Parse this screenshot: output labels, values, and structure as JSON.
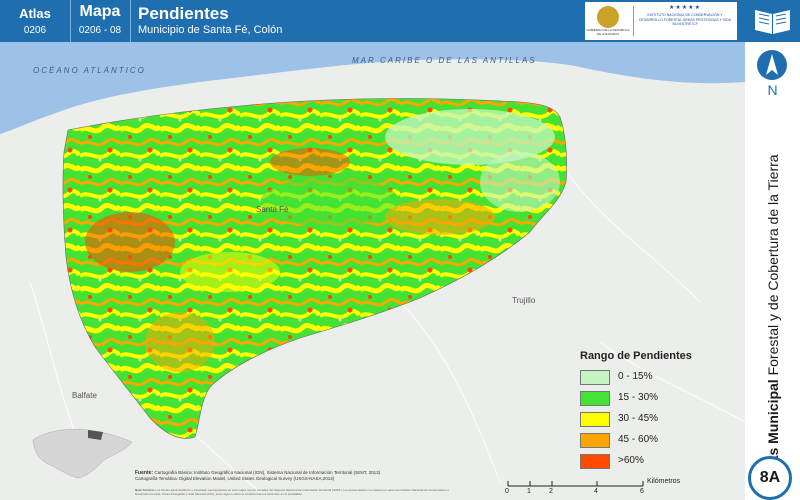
{
  "header": {
    "atlas_label": "Atlas",
    "atlas_code": "0206",
    "map_label": "Mapa",
    "map_code": "0206 - 08",
    "title": "Pendientes",
    "subtitle": "Municipio de Santa Fé, Colón",
    "logo_stars": "★★★★★",
    "logo_left_text": "GOBIERNO DE LA REPÚBLICA DE HONDURAS",
    "logo_right_text": "INSTITUTO NACIONAL DE CONSERVACIÓN Y DESARROLLO FORESTAL ÁREAS PROTEGIDAS Y VIDA SILVESTRE ICF"
  },
  "sidebar": {
    "north_letter": "N",
    "vertical_title_bold": "Atlas Municipal",
    "vertical_title_rest": "Forestal y de Cobertura de la Tierra",
    "badge": "8A"
  },
  "map": {
    "sea_labels": {
      "oceano": "OCÉANO ATLÁNTICO",
      "mar_caribe": "MAR CARIBE O DE LAS ANTILLAS"
    },
    "town_labels": {
      "santa_fe": "Santa Fé",
      "trujillo": "Trujillo",
      "balfate": "Balfate"
    },
    "colors": {
      "sea": "#9ec1e8",
      "land": "#eceeeb",
      "slope_0_15": "#c6f5c2",
      "slope_15_30": "#44e233",
      "slope_30_45": "#ffff00",
      "slope_45_60": "#ffa500",
      "slope_60": "#ff4a00"
    }
  },
  "legend": {
    "title": "Rango de Pendientes",
    "items": [
      {
        "label": "0 - 15%",
        "color": "#c6f5c2"
      },
      {
        "label": "15 - 30%",
        "color": "#44e233"
      },
      {
        "label": "30 - 45%",
        "color": "#ffff00"
      },
      {
        "label": "45 - 60%",
        "color": "#ffa500"
      },
      {
        "label": ">60%",
        "color": "#ff4a00"
      }
    ]
  },
  "sources": {
    "label": "Fuente:",
    "line1": "Cartografía Básica: Instituto Geográfico Nacional (IGN), Sistema Nacional de Información Territorial (SINIT, 2013)",
    "line2": "Cartografía Temática: Digital Elevation Model, United States Geological Survey (USGS-NASA,2014)",
    "notes_label": "Nota Técnica:",
    "notes": "Los límites administrativos y forestales representados en este mapa, fueron tomados del Sistema Nacional de Información Territorial (SINIT). La representación no implica por parte del Instituto Nacional de Conservación y Desarrollo Forestal, Áreas Protegidas y Vida Silvestre (ICF), juicio alguno sobre la condición de los territorios en la actualidad"
  },
  "scale": {
    "units": "Kilómetros",
    "ticks": [
      "0",
      "1",
      "2",
      "4",
      "6"
    ]
  }
}
